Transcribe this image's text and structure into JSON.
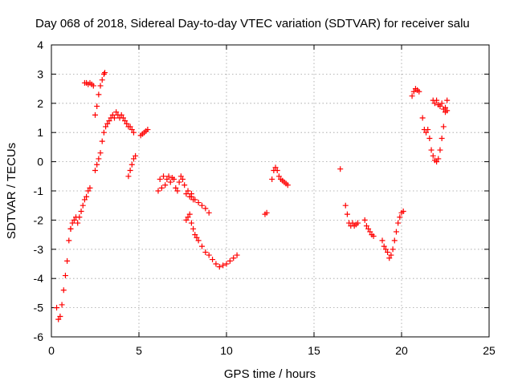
{
  "chart_data": {
    "type": "scatter",
    "title": "Day 068 of 2018, Sidereal Day-to-day VTEC variation (SDTVAR) for receiver salu",
    "xlabel": "GPS time / hours",
    "ylabel": "SDTVAR / TECUs",
    "xlim": [
      0,
      25
    ],
    "ylim": [
      -6,
      4
    ],
    "xticks": [
      0,
      5,
      10,
      15,
      20,
      25
    ],
    "yticks": [
      -6,
      -5,
      -4,
      -3,
      -2,
      -1,
      0,
      1,
      2,
      3,
      4
    ],
    "grid": true,
    "marker": "+",
    "marker_color": "#ff0000",
    "grid_color": "#a0a0a0",
    "segments": [
      {
        "x": [
          0.3,
          0.4,
          0.5,
          0.6,
          0.7,
          0.8,
          0.9,
          1.0,
          1.1
        ],
        "y": [
          -5.0,
          -5.4,
          -5.3,
          -4.9,
          -4.4,
          -3.9,
          -3.4,
          -2.7,
          -2.3
        ]
      },
      {
        "x": [
          1.1,
          1.2,
          1.3,
          1.4,
          1.5,
          1.6,
          1.7,
          1.8,
          1.9,
          2.0,
          2.1,
          2.2
        ],
        "y": [
          -2.3,
          -2.1,
          -2.0,
          -1.9,
          -2.1,
          -1.9,
          -1.7,
          -1.5,
          -1.3,
          -1.2,
          -1.0,
          -0.9
        ]
      },
      {
        "x": [
          1.9,
          2.0,
          2.1,
          2.2,
          2.3,
          2.4
        ],
        "y": [
          2.7,
          2.7,
          2.65,
          2.7,
          2.65,
          2.6
        ]
      },
      {
        "x": [
          2.5,
          2.6,
          2.7,
          2.8,
          2.9,
          3.0,
          3.05
        ],
        "y": [
          1.6,
          1.9,
          2.3,
          2.6,
          2.8,
          3.0,
          3.05
        ]
      },
      {
        "x": [
          2.5,
          2.6,
          2.7,
          2.8,
          2.9,
          3.0,
          3.1,
          3.2
        ],
        "y": [
          -0.3,
          -0.1,
          0.1,
          0.3,
          0.7,
          1.0,
          1.2,
          1.3
        ]
      },
      {
        "x": [
          3.3,
          3.4,
          3.5,
          3.6,
          3.7,
          3.8,
          3.9,
          4.0,
          4.1,
          4.2,
          4.3,
          4.4,
          4.5,
          4.6,
          4.7
        ],
        "y": [
          1.4,
          1.5,
          1.6,
          1.5,
          1.7,
          1.6,
          1.5,
          1.6,
          1.5,
          1.4,
          1.3,
          1.2,
          1.2,
          1.1,
          1.0
        ]
      },
      {
        "x": [
          4.4,
          4.5,
          4.6,
          4.7,
          4.8
        ],
        "y": [
          -0.5,
          -0.3,
          -0.1,
          0.1,
          0.2
        ]
      },
      {
        "x": [
          5.1,
          5.2,
          5.3,
          5.4,
          5.5
        ],
        "y": [
          0.9,
          0.95,
          1.0,
          1.05,
          1.1
        ]
      },
      {
        "x": [
          6.1,
          6.2,
          6.3,
          6.4,
          6.5,
          6.6,
          6.7,
          6.8,
          6.9,
          7.0,
          7.1,
          7.2,
          7.3,
          7.4,
          7.5,
          7.6,
          7.7,
          7.8,
          7.9,
          8.0,
          8.1
        ],
        "y": [
          -1.0,
          -0.6,
          -0.9,
          -0.5,
          -0.8,
          -0.6,
          -0.5,
          -0.7,
          -0.55,
          -0.6,
          -0.9,
          -1.0,
          -0.7,
          -0.5,
          -0.6,
          -0.8,
          -1.1,
          -1.0,
          -1.2,
          -1.1,
          -1.3
        ]
      },
      {
        "x": [
          8.0,
          8.2,
          8.4,
          8.6,
          8.8,
          9.0
        ],
        "y": [
          -1.2,
          -1.3,
          -1.4,
          -1.5,
          -1.6,
          -1.75
        ]
      },
      {
        "x": [
          7.7,
          7.8,
          7.9,
          8.0,
          8.1,
          8.2,
          8.3,
          8.4,
          8.6,
          8.8,
          9.0,
          9.2,
          9.4,
          9.6,
          9.8,
          10.0,
          10.2,
          10.4,
          10.6
        ],
        "y": [
          -2.0,
          -1.9,
          -1.8,
          -2.1,
          -2.3,
          -2.5,
          -2.6,
          -2.7,
          -2.9,
          -3.1,
          -3.2,
          -3.35,
          -3.5,
          -3.6,
          -3.55,
          -3.5,
          -3.4,
          -3.3,
          -3.2
        ]
      },
      {
        "x": [
          12.2,
          12.3
        ],
        "y": [
          -1.8,
          -1.75
        ]
      },
      {
        "x": [
          12.6,
          12.7,
          12.8,
          12.9,
          13.0,
          13.1,
          13.2,
          13.3,
          13.4,
          13.5
        ],
        "y": [
          -0.6,
          -0.3,
          -0.2,
          -0.3,
          -0.5,
          -0.6,
          -0.65,
          -0.7,
          -0.75,
          -0.8
        ]
      },
      {
        "x": [
          16.5
        ],
        "y": [
          -0.25
        ]
      },
      {
        "x": [
          16.8,
          16.9,
          17.0,
          17.1,
          17.2,
          17.3,
          17.4,
          17.5
        ],
        "y": [
          -1.5,
          -1.8,
          -2.1,
          -2.2,
          -2.1,
          -2.2,
          -2.15,
          -2.1
        ]
      },
      {
        "x": [
          17.9,
          18.0,
          18.1,
          18.2,
          18.3,
          18.4
        ],
        "y": [
          -2.0,
          -2.2,
          -2.3,
          -2.4,
          -2.5,
          -2.55
        ]
      },
      {
        "x": [
          18.9,
          19.0,
          19.1,
          19.2,
          19.3,
          19.4,
          19.5,
          19.6,
          19.7,
          19.8,
          19.9,
          20.0,
          20.1
        ],
        "y": [
          -2.7,
          -2.9,
          -3.0,
          -3.1,
          -3.3,
          -3.2,
          -3.0,
          -2.7,
          -2.4,
          -2.1,
          -1.9,
          -1.75,
          -1.7
        ]
      },
      {
        "x": [
          20.6,
          20.7,
          20.8,
          20.9,
          21.0
        ],
        "y": [
          2.25,
          2.4,
          2.5,
          2.45,
          2.4
        ]
      },
      {
        "x": [
          21.2,
          21.3,
          21.4,
          21.5,
          21.6,
          21.7,
          21.8,
          21.9,
          22.0,
          22.1,
          22.2,
          22.3,
          22.4,
          22.5,
          22.6
        ],
        "y": [
          1.5,
          1.1,
          1.0,
          1.1,
          0.8,
          0.4,
          0.2,
          0.05,
          0.0,
          0.1,
          0.4,
          0.8,
          1.2,
          1.7,
          2.1
        ]
      },
      {
        "x": [
          21.8,
          21.9,
          22.0,
          22.1,
          22.2,
          22.3,
          22.4,
          22.5,
          22.6
        ],
        "y": [
          2.1,
          2.0,
          2.1,
          1.95,
          1.9,
          2.0,
          1.8,
          1.85,
          1.75
        ]
      }
    ]
  }
}
